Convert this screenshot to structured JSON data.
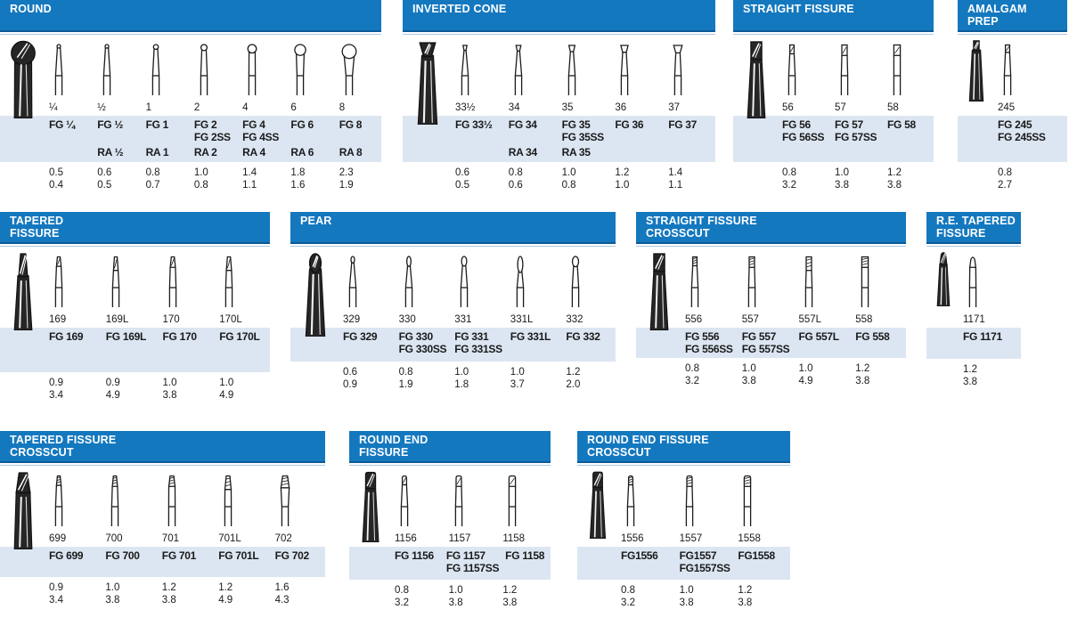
{
  "colors": {
    "header_blue": "#1478bf",
    "header_blue_dark": "#0b5a97",
    "band_light_blue": "#dce6f2",
    "text": "#1a1a1a"
  },
  "sections": [
    {
      "id": "round",
      "title_lines": [
        "ROUND"
      ],
      "bur_type": "round",
      "columns": [
        {
          "size": "¼",
          "fg": [
            "FG ¼"
          ],
          "ra": "",
          "d1": "0.5",
          "d2": "0.4"
        },
        {
          "size": "½",
          "fg": [
            "FG ½"
          ],
          "ra": "RA ½",
          "d1": "0.6",
          "d2": "0.5"
        },
        {
          "size": "1",
          "fg": [
            "FG 1"
          ],
          "ra": "RA 1",
          "d1": "0.8",
          "d2": "0.7"
        },
        {
          "size": "2",
          "fg": [
            "FG 2",
            "FG 2SS"
          ],
          "ra": "RA 2",
          "d1": "1.0",
          "d2": "0.8"
        },
        {
          "size": "4",
          "fg": [
            "FG 4",
            "FG 4SS"
          ],
          "ra": "RA 4",
          "d1": "1.4",
          "d2": "1.1"
        },
        {
          "size": "6",
          "fg": [
            "FG 6"
          ],
          "ra": "RA 6",
          "d1": "1.8",
          "d2": "1.6"
        },
        {
          "size": "8",
          "fg": [
            "FG 8"
          ],
          "ra": "RA 8",
          "d1": "2.3",
          "d2": "1.9"
        }
      ]
    },
    {
      "id": "inverted-cone",
      "title_lines": [
        "INVERTED CONE"
      ],
      "bur_type": "inverted-cone",
      "columns": [
        {
          "size": "33½",
          "fg": [
            "FG 33½"
          ],
          "ra": "",
          "d1": "0.6",
          "d2": "0.5"
        },
        {
          "size": "34",
          "fg": [
            "FG 34"
          ],
          "ra": "RA 34",
          "d1": "0.8",
          "d2": "0.6"
        },
        {
          "size": "35",
          "fg": [
            "FG 35",
            "FG 35SS"
          ],
          "ra": "RA 35",
          "d1": "1.0",
          "d2": "0.8"
        },
        {
          "size": "36",
          "fg": [
            "FG 36"
          ],
          "ra": "",
          "d1": "1.2",
          "d2": "1.0"
        },
        {
          "size": "37",
          "fg": [
            "FG 37"
          ],
          "ra": "",
          "d1": "1.4",
          "d2": "1.1"
        }
      ]
    },
    {
      "id": "straight-fissure",
      "title_lines": [
        "STRAIGHT FISSURE"
      ],
      "bur_type": "straight-fissure",
      "columns": [
        {
          "size": "56",
          "fg": [
            "FG 56",
            "FG 56SS"
          ],
          "ra": "",
          "d1": "0.8",
          "d2": "3.2"
        },
        {
          "size": "57",
          "fg": [
            "FG 57",
            "FG 57SS"
          ],
          "ra": "",
          "d1": "1.0",
          "d2": "3.8"
        },
        {
          "size": "58",
          "fg": [
            "FG 58"
          ],
          "ra": "",
          "d1": "1.2",
          "d2": "3.8"
        }
      ]
    },
    {
      "id": "amalgam-prep",
      "title_lines": [
        "AMALGAM",
        "PREP"
      ],
      "bur_type": "amalgam-prep",
      "columns": [
        {
          "size": "245",
          "fg": [
            "FG 245",
            "FG 245SS"
          ],
          "ra": "",
          "d1": "0.8",
          "d2": "2.7"
        }
      ]
    },
    {
      "id": "tapered-fissure",
      "title_lines": [
        "TAPERED",
        "FISSURE"
      ],
      "bur_type": "tapered-fissure",
      "columns": [
        {
          "size": "169",
          "fg": [
            "FG 169"
          ],
          "ra": "",
          "d1": "0.9",
          "d2": "3.4"
        },
        {
          "size": "169L",
          "fg": [
            "FG 169L"
          ],
          "ra": "",
          "d1": "0.9",
          "d2": "4.9"
        },
        {
          "size": "170",
          "fg": [
            "FG 170"
          ],
          "ra": "",
          "d1": "1.0",
          "d2": "3.8"
        },
        {
          "size": "170L",
          "fg": [
            "FG 170L"
          ],
          "ra": "",
          "d1": "1.0",
          "d2": "4.9"
        }
      ]
    },
    {
      "id": "pear",
      "title_lines": [
        "PEAR"
      ],
      "bur_type": "pear",
      "columns": [
        {
          "size": "329",
          "fg": [
            "FG 329"
          ],
          "ra": "",
          "d1": "0.6",
          "d2": "0.9"
        },
        {
          "size": "330",
          "fg": [
            "FG 330",
            "FG 330SS"
          ],
          "ra": "",
          "d1": "0.8",
          "d2": "1.9"
        },
        {
          "size": "331",
          "fg": [
            "FG 331",
            "FG 331SS"
          ],
          "ra": "",
          "d1": "1.0",
          "d2": "1.8"
        },
        {
          "size": "331L",
          "fg": [
            "FG 331L"
          ],
          "ra": "",
          "d1": "1.0",
          "d2": "3.7"
        },
        {
          "size": "332",
          "fg": [
            "FG 332"
          ],
          "ra": "",
          "d1": "1.2",
          "d2": "2.0"
        }
      ]
    },
    {
      "id": "straight-fissure-crosscut",
      "title_lines": [
        "STRAIGHT FISSURE",
        "CROSSCUT"
      ],
      "bur_type": "straight-fissure-crosscut",
      "columns": [
        {
          "size": "556",
          "fg": [
            "FG 556",
            "FG 556SS"
          ],
          "ra": "",
          "d1": "0.8",
          "d2": "3.2"
        },
        {
          "size": "557",
          "fg": [
            "FG 557",
            "FG 557SS"
          ],
          "ra": "",
          "d1": "1.0",
          "d2": "3.8"
        },
        {
          "size": "557L",
          "fg": [
            "FG 557L"
          ],
          "ra": "",
          "d1": "1.0",
          "d2": "4.9"
        },
        {
          "size": "558",
          "fg": [
            "FG 558"
          ],
          "ra": "",
          "d1": "1.2",
          "d2": "3.8"
        }
      ]
    },
    {
      "id": "re-tapered-fissure",
      "title_lines": [
        "R.E. TAPERED",
        "FISSURE"
      ],
      "bur_type": "re-tapered-fissure",
      "columns": [
        {
          "size": "1171",
          "fg": [
            "FG 1171"
          ],
          "ra": "",
          "d1": "1.2",
          "d2": "3.8"
        }
      ]
    },
    {
      "id": "tapered-fissure-crosscut",
      "title_lines": [
        "TAPERED FISSURE",
        "CROSSCUT"
      ],
      "bur_type": "tapered-fissure-crosscut",
      "columns": [
        {
          "size": "699",
          "fg": [
            "FG 699"
          ],
          "ra": "",
          "d1": "0.9",
          "d2": "3.4"
        },
        {
          "size": "700",
          "fg": [
            "FG 700"
          ],
          "ra": "",
          "d1": "1.0",
          "d2": "3.8"
        },
        {
          "size": "701",
          "fg": [
            "FG 701"
          ],
          "ra": "",
          "d1": "1.2",
          "d2": "3.8"
        },
        {
          "size": "701L",
          "fg": [
            "FG 701L"
          ],
          "ra": "",
          "d1": "1.2",
          "d2": "4.9"
        },
        {
          "size": "702",
          "fg": [
            "FG 702"
          ],
          "ra": "",
          "d1": "1.6",
          "d2": "4.3"
        }
      ]
    },
    {
      "id": "round-end-fissure",
      "title_lines": [
        "ROUND END",
        "FISSURE"
      ],
      "bur_type": "round-end-fissure",
      "columns": [
        {
          "size": "1156",
          "fg": [
            "FG 1156"
          ],
          "ra": "",
          "d1": "0.8",
          "d2": "3.2"
        },
        {
          "size": "1157",
          "fg": [
            "FG 1157",
            "FG 1157SS"
          ],
          "ra": "",
          "d1": "1.0",
          "d2": "3.8"
        },
        {
          "size": "1158",
          "fg": [
            "FG 1158"
          ],
          "ra": "",
          "d1": "1.2",
          "d2": "3.8"
        }
      ]
    },
    {
      "id": "round-end-fissure-crosscut",
      "title_lines": [
        "ROUND END FISSURE",
        "CROSSCUT"
      ],
      "bur_type": "round-end-fissure-crosscut",
      "columns": [
        {
          "size": "1556",
          "fg": [
            "FG1556"
          ],
          "ra": "",
          "d1": "0.8",
          "d2": "3.2"
        },
        {
          "size": "1557",
          "fg": [
            "FG1557",
            "FG1557SS"
          ],
          "ra": "",
          "d1": "1.0",
          "d2": "3.8"
        },
        {
          "size": "1558",
          "fg": [
            "FG1558"
          ],
          "ra": "",
          "d1": "1.2",
          "d2": "3.8"
        }
      ]
    }
  ]
}
